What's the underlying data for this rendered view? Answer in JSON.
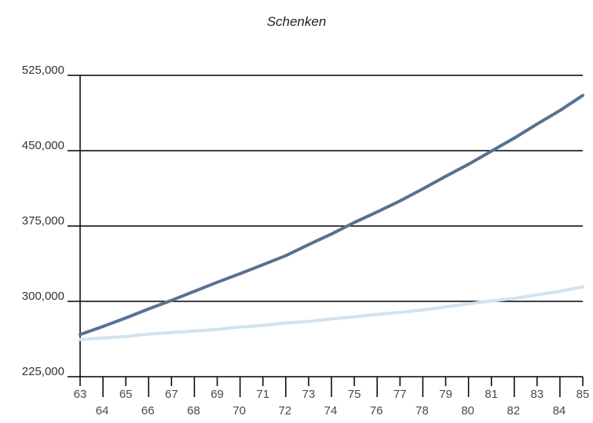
{
  "chart_data": {
    "type": "line",
    "title": "Schenken",
    "xlabel": "",
    "ylabel": "",
    "x": [
      "63",
      "64",
      "65",
      "66",
      "67",
      "68",
      "69",
      "70",
      "71",
      "72",
      "73",
      "74",
      "75",
      "76",
      "77",
      "78",
      "79",
      "80",
      "81",
      "82",
      "83",
      "84",
      "85"
    ],
    "ylim": [
      225000,
      525000
    ],
    "yticks": [
      "525,000",
      "450,000",
      "375,000",
      "300,000",
      "225,000"
    ],
    "ytick_values": [
      525000,
      450000,
      375000,
      300000,
      225000
    ],
    "grid": true,
    "series": [
      {
        "color": "#56728f",
        "values": [
          267000,
          275000,
          283500,
          292500,
          301000,
          310000,
          319000,
          327500,
          336500,
          345500,
          356500,
          367000,
          378500,
          389000,
          400000,
          412000,
          424500,
          436500,
          449500,
          462500,
          476500,
          490000,
          505000
        ]
      },
      {
        "color": "#d3e3ee",
        "values": [
          262000,
          263500,
          265000,
          267500,
          269000,
          270500,
          272000,
          274500,
          276000,
          278500,
          280000,
          282500,
          284500,
          287000,
          289000,
          291500,
          294500,
          297500,
          300500,
          303000,
          306500,
          310000,
          314500
        ]
      }
    ]
  }
}
